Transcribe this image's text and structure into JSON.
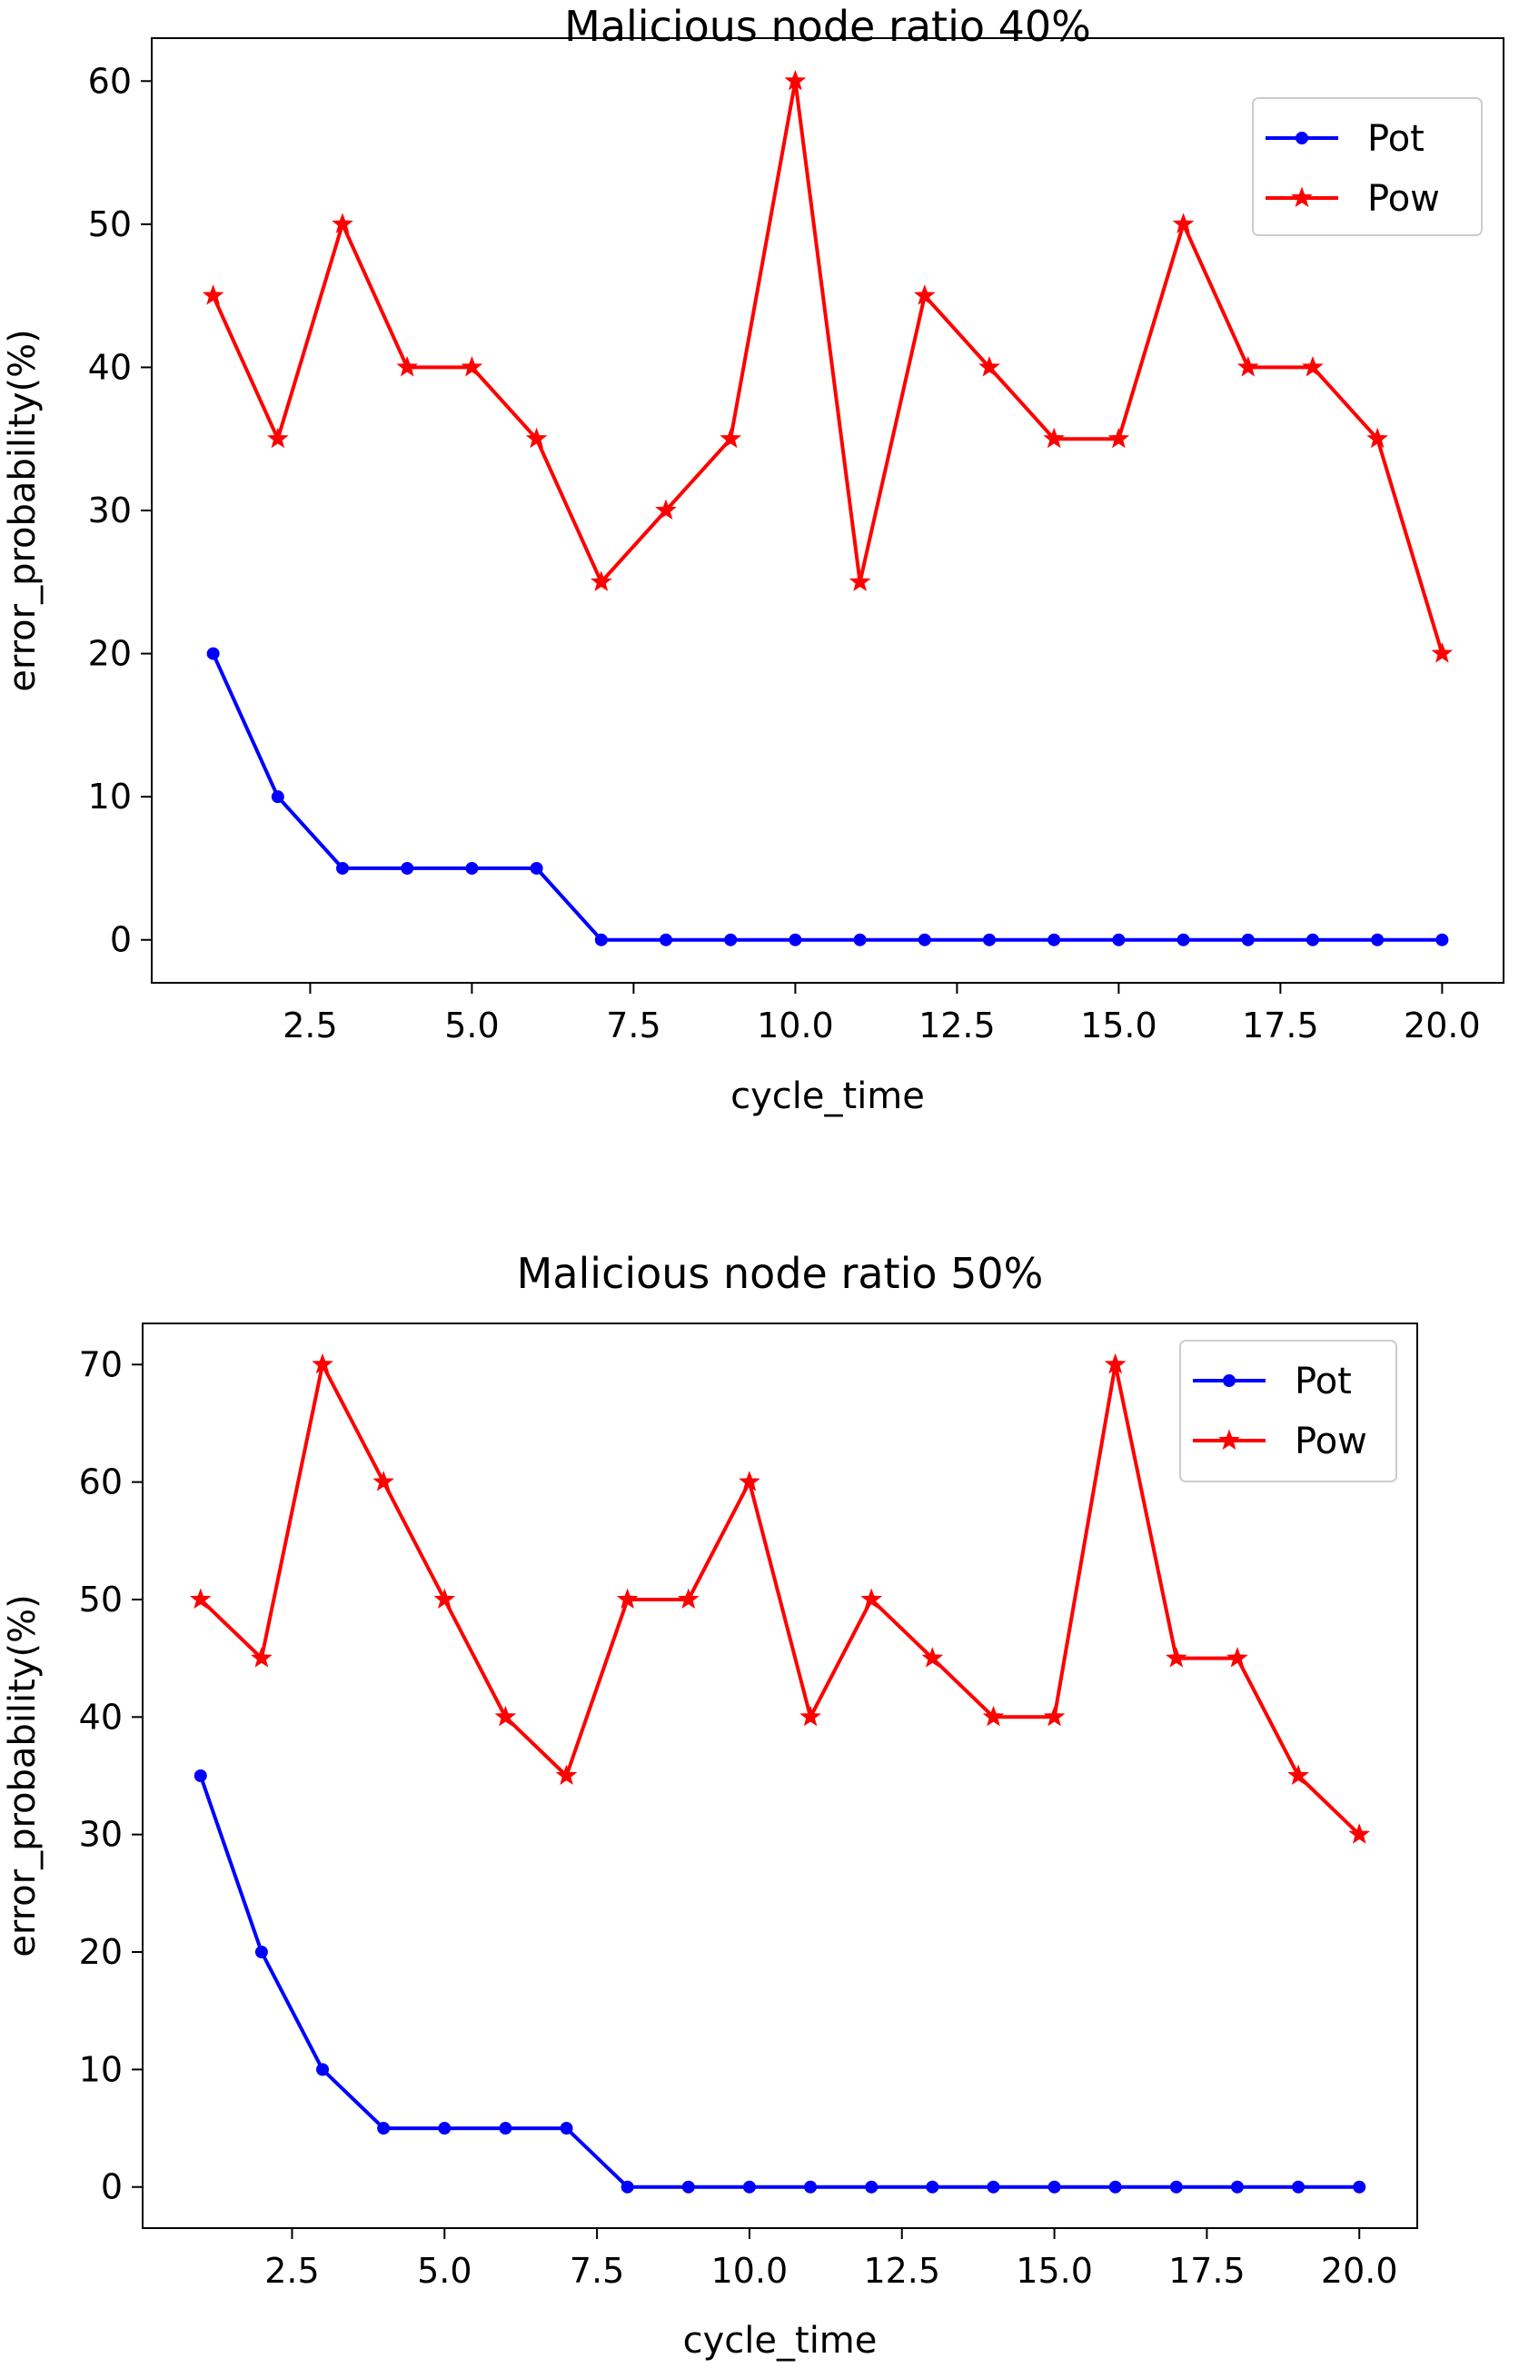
{
  "chart_data": [
    {
      "type": "line",
      "title": "Malicious node ratio 40%",
      "xlabel": "cycle_time",
      "ylabel": "error_probability(%)",
      "xlim": [
        0.05,
        20.95
      ],
      "ylim": [
        -3,
        63
      ],
      "xticks": [
        2.5,
        5.0,
        7.5,
        10.0,
        12.5,
        15.0,
        17.5,
        20.0
      ],
      "xtick_labels": [
        "2.5",
        "5.0",
        "7.5",
        "10.0",
        "12.5",
        "15.0",
        "17.5",
        "20.0"
      ],
      "yticks": [
        0,
        10,
        20,
        30,
        40,
        50,
        60
      ],
      "ytick_labels": [
        "0",
        "10",
        "20",
        "30",
        "40",
        "50",
        "60"
      ],
      "grid": false,
      "legend": "top-right",
      "x": [
        1,
        2,
        3,
        4,
        5,
        6,
        7,
        8,
        9,
        10,
        11,
        12,
        13,
        14,
        15,
        16,
        17,
        18,
        19,
        20
      ],
      "series": [
        {
          "name": "Pot",
          "color": "#0000ff",
          "marker": "dot",
          "values": [
            20,
            10,
            5,
            5,
            5,
            5,
            0,
            0,
            0,
            0,
            0,
            0,
            0,
            0,
            0,
            0,
            0,
            0,
            0,
            0
          ]
        },
        {
          "name": "Pow",
          "color": "#ff0000",
          "marker": "star",
          "values": [
            45,
            35,
            50,
            40,
            40,
            35,
            25,
            30,
            35,
            60,
            25,
            45,
            40,
            35,
            35,
            50,
            40,
            40,
            35,
            20
          ]
        }
      ]
    },
    {
      "type": "line",
      "title": "Malicious node ratio 50%",
      "xlabel": "cycle_time",
      "ylabel": "error_probability(%)",
      "xlim": [
        0.05,
        20.95
      ],
      "ylim": [
        -3.5,
        73.5
      ],
      "xticks": [
        2.5,
        5.0,
        7.5,
        10.0,
        12.5,
        15.0,
        17.5,
        20.0
      ],
      "xtick_labels": [
        "2.5",
        "5.0",
        "7.5",
        "10.0",
        "12.5",
        "15.0",
        "17.5",
        "20.0"
      ],
      "yticks": [
        0,
        10,
        20,
        30,
        40,
        50,
        60,
        70
      ],
      "ytick_labels": [
        "0",
        "10",
        "20",
        "30",
        "40",
        "50",
        "60",
        "70"
      ],
      "grid": false,
      "legend": "top-right",
      "x": [
        1,
        2,
        3,
        4,
        5,
        6,
        7,
        8,
        9,
        10,
        11,
        12,
        13,
        14,
        15,
        16,
        17,
        18,
        19,
        20
      ],
      "series": [
        {
          "name": "Pot",
          "color": "#0000ff",
          "marker": "dot",
          "values": [
            35,
            20,
            10,
            5,
            5,
            5,
            5,
            0,
            0,
            0,
            0,
            0,
            0,
            0,
            0,
            0,
            0,
            0,
            0,
            0
          ]
        },
        {
          "name": "Pow",
          "color": "#ff0000",
          "marker": "star",
          "values": [
            50,
            45,
            70,
            60,
            50,
            40,
            35,
            50,
            50,
            60,
            40,
            50,
            45,
            40,
            40,
            70,
            45,
            45,
            35,
            30
          ]
        }
      ]
    }
  ]
}
